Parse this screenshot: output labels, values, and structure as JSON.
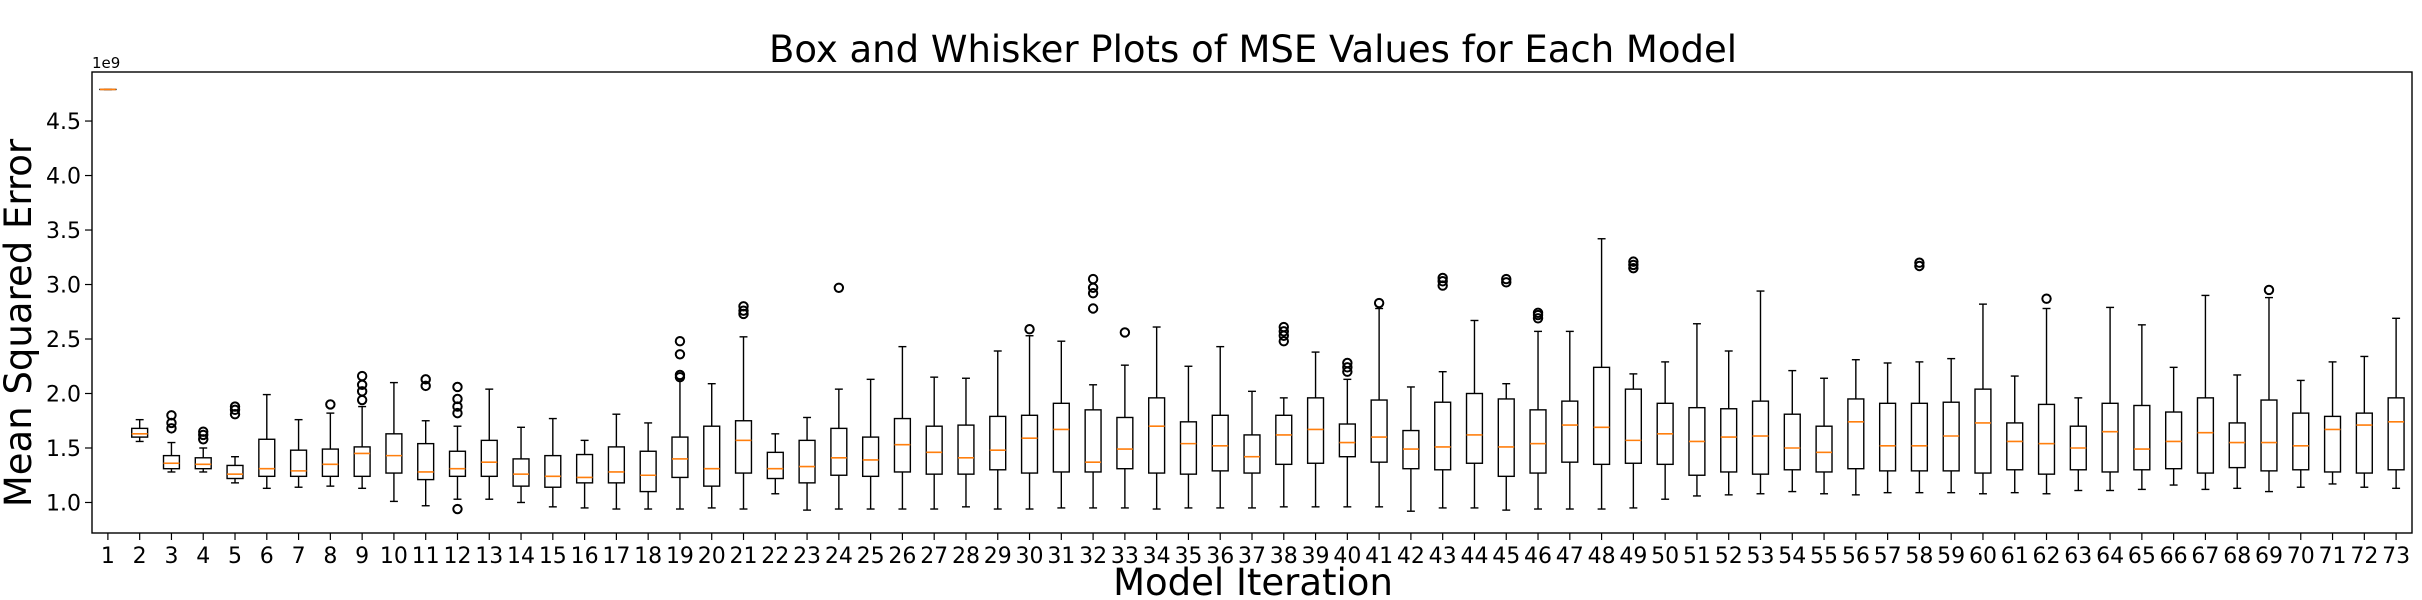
{
  "chart_data": {
    "type": "box",
    "title": "Box and Whisker Plots of MSE Values for Each Model",
    "xlabel": "Model Iteration",
    "ylabel": "Mean Squared Error",
    "y_offset_label": "1e9",
    "ylim": [
      0.72,
      4.95
    ],
    "yticks": [
      1.0,
      1.5,
      2.0,
      2.5,
      3.0,
      3.5,
      4.0,
      4.5
    ],
    "ytick_labels": [
      "1.0",
      "1.5",
      "2.0",
      "2.5",
      "3.0",
      "3.5",
      "4.0",
      "4.5"
    ],
    "grid": false,
    "colors": {
      "box": "#000000",
      "median": "#ff7f0e"
    },
    "boxes": [
      {
        "label": "1",
        "min": 4.79,
        "q1": 4.79,
        "median": 4.79,
        "q3": 4.79,
        "max": 4.79,
        "fliers": []
      },
      {
        "label": "2",
        "min": 1.56,
        "q1": 1.6,
        "median": 1.63,
        "q3": 1.68,
        "max": 1.76,
        "fliers": []
      },
      {
        "label": "3",
        "min": 1.28,
        "q1": 1.31,
        "median": 1.36,
        "q3": 1.43,
        "max": 1.55,
        "fliers": [
          1.68,
          1.73,
          1.8
        ]
      },
      {
        "label": "4",
        "min": 1.28,
        "q1": 1.31,
        "median": 1.35,
        "q3": 1.41,
        "max": 1.5,
        "fliers": [
          1.58,
          1.62,
          1.65
        ]
      },
      {
        "label": "5",
        "min": 1.18,
        "q1": 1.22,
        "median": 1.26,
        "q3": 1.34,
        "max": 1.42,
        "fliers": [
          1.81,
          1.85,
          1.88
        ]
      },
      {
        "label": "6",
        "min": 1.13,
        "q1": 1.24,
        "median": 1.31,
        "q3": 1.58,
        "max": 1.99,
        "fliers": []
      },
      {
        "label": "7",
        "min": 1.14,
        "q1": 1.24,
        "median": 1.29,
        "q3": 1.48,
        "max": 1.76,
        "fliers": []
      },
      {
        "label": "8",
        "min": 1.15,
        "q1": 1.24,
        "median": 1.35,
        "q3": 1.49,
        "max": 1.82,
        "fliers": [
          1.9
        ]
      },
      {
        "label": "9",
        "min": 1.13,
        "q1": 1.24,
        "median": 1.45,
        "q3": 1.51,
        "max": 1.88,
        "fliers": [
          1.94,
          2.02,
          2.08,
          2.16
        ]
      },
      {
        "label": "10",
        "min": 1.01,
        "q1": 1.27,
        "median": 1.43,
        "q3": 1.63,
        "max": 2.1,
        "fliers": []
      },
      {
        "label": "11",
        "min": 0.97,
        "q1": 1.21,
        "median": 1.28,
        "q3": 1.54,
        "max": 1.75,
        "fliers": [
          2.07,
          2.13
        ]
      },
      {
        "label": "12",
        "min": 1.03,
        "q1": 1.24,
        "median": 1.31,
        "q3": 1.47,
        "max": 1.7,
        "fliers": [
          0.94,
          1.82,
          1.88,
          1.95,
          2.06
        ]
      },
      {
        "label": "13",
        "min": 1.03,
        "q1": 1.24,
        "median": 1.37,
        "q3": 1.57,
        "max": 2.04,
        "fliers": []
      },
      {
        "label": "14",
        "min": 1.0,
        "q1": 1.15,
        "median": 1.26,
        "q3": 1.4,
        "max": 1.69,
        "fliers": []
      },
      {
        "label": "15",
        "min": 0.96,
        "q1": 1.14,
        "median": 1.24,
        "q3": 1.43,
        "max": 1.77,
        "fliers": []
      },
      {
        "label": "16",
        "min": 0.95,
        "q1": 1.18,
        "median": 1.23,
        "q3": 1.44,
        "max": 1.57,
        "fliers": []
      },
      {
        "label": "17",
        "min": 0.94,
        "q1": 1.18,
        "median": 1.28,
        "q3": 1.51,
        "max": 1.81,
        "fliers": []
      },
      {
        "label": "18",
        "min": 0.94,
        "q1": 1.1,
        "median": 1.25,
        "q3": 1.47,
        "max": 1.73,
        "fliers": []
      },
      {
        "label": "19",
        "min": 0.94,
        "q1": 1.23,
        "median": 1.4,
        "q3": 1.6,
        "max": 2.13,
        "fliers": [
          2.15,
          2.17,
          2.36,
          2.48
        ]
      },
      {
        "label": "20",
        "min": 0.95,
        "q1": 1.15,
        "median": 1.31,
        "q3": 1.7,
        "max": 2.09,
        "fliers": []
      },
      {
        "label": "21",
        "min": 0.94,
        "q1": 1.27,
        "median": 1.57,
        "q3": 1.75,
        "max": 2.52,
        "fliers": [
          2.73,
          2.76,
          2.8
        ]
      },
      {
        "label": "22",
        "min": 1.08,
        "q1": 1.22,
        "median": 1.31,
        "q3": 1.46,
        "max": 1.63,
        "fliers": []
      },
      {
        "label": "23",
        "min": 0.93,
        "q1": 1.18,
        "median": 1.33,
        "q3": 1.57,
        "max": 1.78,
        "fliers": []
      },
      {
        "label": "24",
        "min": 0.94,
        "q1": 1.25,
        "median": 1.41,
        "q3": 1.68,
        "max": 2.04,
        "fliers": [
          2.97
        ]
      },
      {
        "label": "25",
        "min": 0.94,
        "q1": 1.24,
        "median": 1.39,
        "q3": 1.6,
        "max": 2.13,
        "fliers": []
      },
      {
        "label": "26",
        "min": 0.94,
        "q1": 1.28,
        "median": 1.53,
        "q3": 1.77,
        "max": 2.43,
        "fliers": []
      },
      {
        "label": "27",
        "min": 0.94,
        "q1": 1.26,
        "median": 1.46,
        "q3": 1.7,
        "max": 2.15,
        "fliers": []
      },
      {
        "label": "28",
        "min": 0.96,
        "q1": 1.26,
        "median": 1.41,
        "q3": 1.71,
        "max": 2.14,
        "fliers": []
      },
      {
        "label": "29",
        "min": 0.94,
        "q1": 1.3,
        "median": 1.48,
        "q3": 1.79,
        "max": 2.39,
        "fliers": []
      },
      {
        "label": "30",
        "min": 0.94,
        "q1": 1.27,
        "median": 1.59,
        "q3": 1.8,
        "max": 2.53,
        "fliers": [
          2.59
        ]
      },
      {
        "label": "31",
        "min": 0.95,
        "q1": 1.28,
        "median": 1.67,
        "q3": 1.91,
        "max": 2.48,
        "fliers": []
      },
      {
        "label": "32",
        "min": 0.95,
        "q1": 1.28,
        "median": 1.37,
        "q3": 1.85,
        "max": 2.08,
        "fliers": [
          2.78,
          2.92,
          2.97,
          3.05
        ]
      },
      {
        "label": "33",
        "min": 0.95,
        "q1": 1.31,
        "median": 1.49,
        "q3": 1.78,
        "max": 2.26,
        "fliers": [
          2.56
        ]
      },
      {
        "label": "34",
        "min": 0.94,
        "q1": 1.27,
        "median": 1.7,
        "q3": 1.96,
        "max": 2.61,
        "fliers": []
      },
      {
        "label": "35",
        "min": 0.95,
        "q1": 1.26,
        "median": 1.54,
        "q3": 1.74,
        "max": 2.25,
        "fliers": []
      },
      {
        "label": "36",
        "min": 0.95,
        "q1": 1.29,
        "median": 1.52,
        "q3": 1.8,
        "max": 2.43,
        "fliers": []
      },
      {
        "label": "37",
        "min": 0.95,
        "q1": 1.27,
        "median": 1.42,
        "q3": 1.62,
        "max": 2.02,
        "fliers": []
      },
      {
        "label": "38",
        "min": 0.96,
        "q1": 1.35,
        "median": 1.62,
        "q3": 1.8,
        "max": 1.96,
        "fliers": [
          2.48,
          2.53,
          2.57,
          2.61
        ]
      },
      {
        "label": "39",
        "min": 0.96,
        "q1": 1.36,
        "median": 1.67,
        "q3": 1.96,
        "max": 2.38,
        "fliers": []
      },
      {
        "label": "40",
        "min": 0.96,
        "q1": 1.42,
        "median": 1.55,
        "q3": 1.72,
        "max": 2.13,
        "fliers": [
          2.2,
          2.24,
          2.28
        ]
      },
      {
        "label": "41",
        "min": 0.96,
        "q1": 1.37,
        "median": 1.6,
        "q3": 1.94,
        "max": 2.78,
        "fliers": [
          2.83
        ]
      },
      {
        "label": "42",
        "min": 0.92,
        "q1": 1.31,
        "median": 1.49,
        "q3": 1.66,
        "max": 2.06,
        "fliers": []
      },
      {
        "label": "43",
        "min": 0.95,
        "q1": 1.3,
        "median": 1.51,
        "q3": 1.92,
        "max": 2.2,
        "fliers": [
          2.99,
          3.03,
          3.06
        ]
      },
      {
        "label": "44",
        "min": 0.95,
        "q1": 1.36,
        "median": 1.62,
        "q3": 2.0,
        "max": 2.67,
        "fliers": []
      },
      {
        "label": "45",
        "min": 0.93,
        "q1": 1.24,
        "median": 1.51,
        "q3": 1.95,
        "max": 2.09,
        "fliers": [
          3.02,
          3.05
        ]
      },
      {
        "label": "46",
        "min": 0.94,
        "q1": 1.27,
        "median": 1.54,
        "q3": 1.85,
        "max": 2.57,
        "fliers": [
          2.69,
          2.72,
          2.74
        ]
      },
      {
        "label": "47",
        "min": 0.94,
        "q1": 1.37,
        "median": 1.71,
        "q3": 1.93,
        "max": 2.57,
        "fliers": []
      },
      {
        "label": "48",
        "min": 0.94,
        "q1": 1.35,
        "median": 1.69,
        "q3": 2.24,
        "max": 3.42,
        "fliers": []
      },
      {
        "label": "49",
        "min": 0.95,
        "q1": 1.36,
        "median": 1.57,
        "q3": 2.04,
        "max": 2.18,
        "fliers": [
          3.15,
          3.18,
          3.21
        ]
      },
      {
        "label": "50",
        "min": 1.03,
        "q1": 1.35,
        "median": 1.63,
        "q3": 1.91,
        "max": 2.29,
        "fliers": []
      },
      {
        "label": "51",
        "min": 1.06,
        "q1": 1.25,
        "median": 1.56,
        "q3": 1.87,
        "max": 2.64,
        "fliers": []
      },
      {
        "label": "52",
        "min": 1.07,
        "q1": 1.28,
        "median": 1.6,
        "q3": 1.86,
        "max": 2.39,
        "fliers": []
      },
      {
        "label": "53",
        "min": 1.08,
        "q1": 1.26,
        "median": 1.61,
        "q3": 1.93,
        "max": 2.94,
        "fliers": []
      },
      {
        "label": "54",
        "min": 1.1,
        "q1": 1.3,
        "median": 1.5,
        "q3": 1.81,
        "max": 2.21,
        "fliers": []
      },
      {
        "label": "55",
        "min": 1.08,
        "q1": 1.28,
        "median": 1.46,
        "q3": 1.7,
        "max": 2.14,
        "fliers": []
      },
      {
        "label": "56",
        "min": 1.07,
        "q1": 1.31,
        "median": 1.74,
        "q3": 1.95,
        "max": 2.31,
        "fliers": []
      },
      {
        "label": "57",
        "min": 1.09,
        "q1": 1.29,
        "median": 1.52,
        "q3": 1.91,
        "max": 2.28,
        "fliers": []
      },
      {
        "label": "58",
        "min": 1.09,
        "q1": 1.29,
        "median": 1.52,
        "q3": 1.91,
        "max": 2.29,
        "fliers": [
          3.17,
          3.2
        ]
      },
      {
        "label": "59",
        "min": 1.09,
        "q1": 1.29,
        "median": 1.61,
        "q3": 1.92,
        "max": 2.32,
        "fliers": []
      },
      {
        "label": "60",
        "min": 1.08,
        "q1": 1.27,
        "median": 1.73,
        "q3": 2.04,
        "max": 2.82,
        "fliers": []
      },
      {
        "label": "61",
        "min": 1.09,
        "q1": 1.3,
        "median": 1.56,
        "q3": 1.73,
        "max": 2.16,
        "fliers": []
      },
      {
        "label": "62",
        "min": 1.08,
        "q1": 1.26,
        "median": 1.54,
        "q3": 1.9,
        "max": 2.78,
        "fliers": [
          2.87
        ]
      },
      {
        "label": "63",
        "min": 1.11,
        "q1": 1.3,
        "median": 1.5,
        "q3": 1.7,
        "max": 1.96,
        "fliers": []
      },
      {
        "label": "64",
        "min": 1.11,
        "q1": 1.28,
        "median": 1.65,
        "q3": 1.91,
        "max": 2.79,
        "fliers": []
      },
      {
        "label": "65",
        "min": 1.12,
        "q1": 1.3,
        "median": 1.49,
        "q3": 1.89,
        "max": 2.63,
        "fliers": []
      },
      {
        "label": "66",
        "min": 1.16,
        "q1": 1.31,
        "median": 1.56,
        "q3": 1.83,
        "max": 2.24,
        "fliers": []
      },
      {
        "label": "67",
        "min": 1.12,
        "q1": 1.27,
        "median": 1.64,
        "q3": 1.96,
        "max": 2.9,
        "fliers": []
      },
      {
        "label": "68",
        "min": 1.13,
        "q1": 1.32,
        "median": 1.55,
        "q3": 1.73,
        "max": 2.17,
        "fliers": []
      },
      {
        "label": "69",
        "min": 1.1,
        "q1": 1.29,
        "median": 1.55,
        "q3": 1.94,
        "max": 2.88,
        "fliers": [
          2.95
        ]
      },
      {
        "label": "70",
        "min": 1.14,
        "q1": 1.3,
        "median": 1.52,
        "q3": 1.82,
        "max": 2.12,
        "fliers": []
      },
      {
        "label": "71",
        "min": 1.17,
        "q1": 1.28,
        "median": 1.67,
        "q3": 1.79,
        "max": 2.29,
        "fliers": []
      },
      {
        "label": "72",
        "min": 1.14,
        "q1": 1.27,
        "median": 1.71,
        "q3": 1.82,
        "max": 2.34,
        "fliers": []
      },
      {
        "label": "73",
        "min": 1.13,
        "q1": 1.3,
        "median": 1.74,
        "q3": 1.96,
        "max": 2.69,
        "fliers": []
      }
    ]
  }
}
